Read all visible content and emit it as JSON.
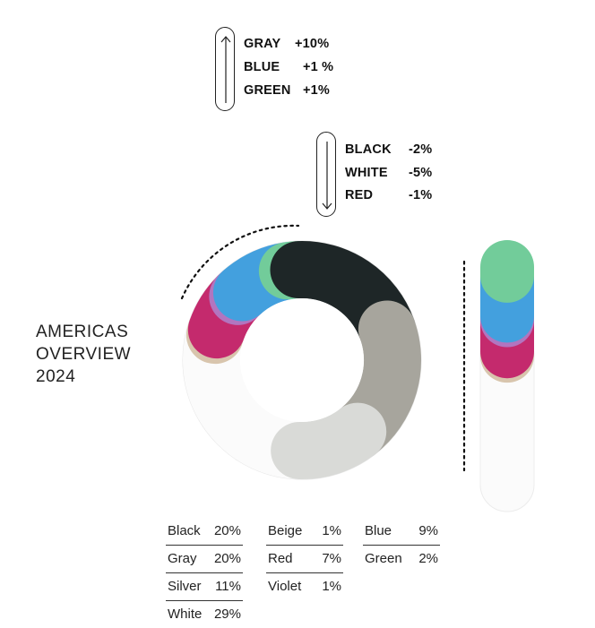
{
  "trends": {
    "up": {
      "direction": "up",
      "rows": [
        {
          "label": "GRAY",
          "value": "+10%"
        },
        {
          "label": "BLUE",
          "value": "+1 %"
        },
        {
          "label": "GREEN",
          "value": "+1%"
        }
      ]
    },
    "down": {
      "direction": "down",
      "rows": [
        {
          "label": "BLACK",
          "value": "-2%"
        },
        {
          "label": "WHITE",
          "value": "-5%"
        },
        {
          "label": "RED",
          "value": "-1%"
        }
      ]
    }
  },
  "overview": {
    "line1": "AMERICAS",
    "line2": "OVERVIEW",
    "line3": "2024"
  },
  "chart_data": {
    "type": "pie",
    "variant": "donut",
    "categories": [
      "Black",
      "Gray",
      "Silver",
      "White",
      "Beige",
      "Red",
      "Violet",
      "Blue",
      "Green"
    ],
    "values": [
      20,
      20,
      11,
      29,
      1,
      7,
      1,
      9,
      2
    ],
    "unit": "%",
    "colors": {
      "Black": "#1e2627",
      "Gray": "#a7a59d",
      "Silver": "#d9dad7",
      "White": "#fbfbfb",
      "Beige": "#d8c5ad",
      "Red": "#c42a6d",
      "Violet": "#b275bf",
      "Blue": "#43a0de",
      "Green": "#72cc9a"
    }
  },
  "legend": {
    "columns": [
      [
        {
          "name": "Black",
          "pct": "20%"
        },
        {
          "name": "Gray",
          "pct": "20%"
        },
        {
          "name": "Silver",
          "pct": "11%"
        },
        {
          "name": "White",
          "pct": "29%"
        }
      ],
      [
        {
          "name": "Beige",
          "pct": "1%"
        },
        {
          "name": "Red",
          "pct": "7%"
        },
        {
          "name": "Violet",
          "pct": "1%"
        }
      ],
      [
        {
          "name": "Blue",
          "pct": "9%"
        },
        {
          "name": "Green",
          "pct": "2%"
        }
      ]
    ]
  }
}
